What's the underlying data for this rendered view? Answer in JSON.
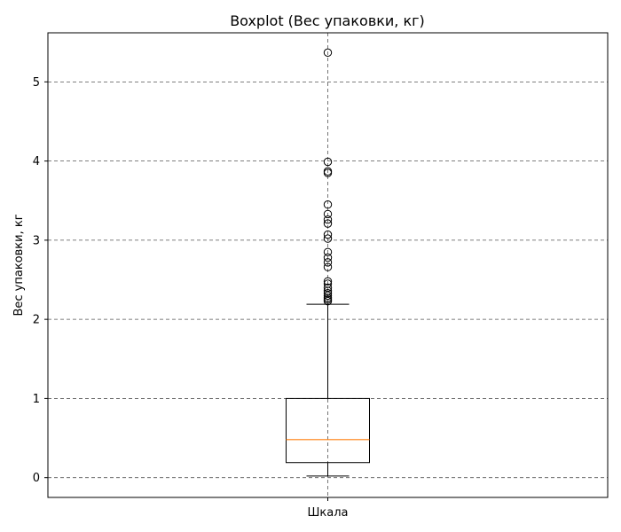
{
  "chart_data": {
    "type": "boxplot",
    "title": "Boxplot (Вес упаковки, кг)",
    "xlabel": "",
    "ylabel": "Вес упаковки, кг",
    "categories": [
      "Шкала"
    ],
    "ylim": [
      -0.25,
      5.62
    ],
    "yticks": [
      0,
      1,
      2,
      3,
      4,
      5
    ],
    "grid": true,
    "grid_style": "dashed",
    "box": {
      "whisker_low": 0.02,
      "q1": 0.19,
      "median": 0.48,
      "q3": 1.0,
      "whisker_high": 2.19
    },
    "outliers": [
      2.23,
      2.25,
      2.27,
      2.3,
      2.33,
      2.36,
      2.4,
      2.45,
      2.48,
      2.66,
      2.72,
      2.78,
      2.85,
      3.02,
      3.07,
      3.21,
      3.26,
      3.33,
      3.45,
      3.85,
      3.87,
      3.99,
      5.37
    ],
    "colors": {
      "median": "#ff7f0e",
      "box": "#000000",
      "grid": "#555555"
    }
  }
}
